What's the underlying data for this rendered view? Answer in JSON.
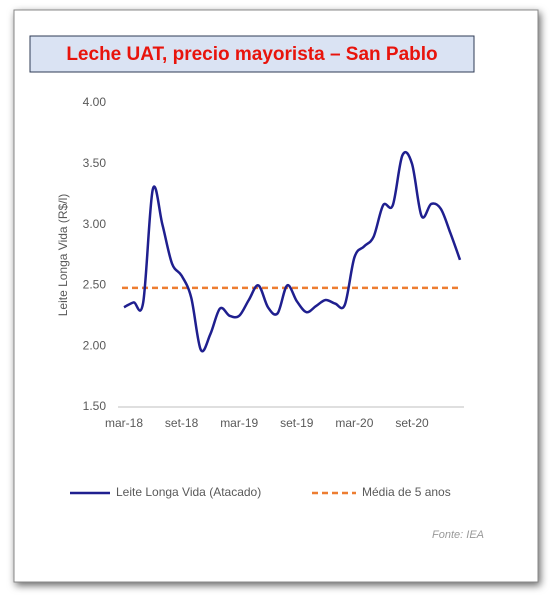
{
  "chart_data": {
    "type": "line",
    "title": "Leche UAT, precio mayorista – San Pablo",
    "ylabel": "Leite Longa Vida (R$/l)",
    "source": "Fonte: IEA",
    "categories": [
      "mar-18",
      null,
      null,
      null,
      null,
      null,
      "set-18",
      null,
      null,
      null,
      null,
      null,
      "mar-19",
      null,
      null,
      null,
      null,
      null,
      "set-19",
      null,
      null,
      null,
      null,
      null,
      "mar-20",
      null,
      null,
      null,
      null,
      null,
      "set-20",
      null,
      null,
      null,
      null,
      null
    ],
    "series": [
      {
        "name": "Leite Longa Vida (Atacado)",
        "color": "#1f1f8f",
        "values": [
          2.32,
          2.36,
          2.36,
          3.29,
          3.0,
          2.68,
          2.58,
          2.4,
          1.97,
          2.1,
          2.31,
          2.25,
          2.25,
          2.38,
          2.5,
          2.32,
          2.27,
          2.5,
          2.37,
          2.28,
          2.33,
          2.38,
          2.35,
          2.34,
          2.73,
          2.82,
          2.9,
          3.16,
          3.16,
          3.57,
          3.5,
          3.07,
          3.17,
          3.13,
          2.93,
          2.71
        ]
      }
    ],
    "reference_line": {
      "name": "Média de 5 anos",
      "value": 2.48,
      "color": "#ed7d31"
    },
    "ylim": [
      1.5,
      4.0
    ],
    "yticks": [
      {
        "value": 1.5,
        "label": "1.50"
      },
      {
        "value": 2.0,
        "label": "2.00"
      },
      {
        "value": 2.5,
        "label": "2.50"
      },
      {
        "value": 3.0,
        "label": "3.00"
      },
      {
        "value": 3.5,
        "label": "3.50"
      },
      {
        "value": 4.0,
        "label": "4.00"
      }
    ],
    "grid": false
  }
}
